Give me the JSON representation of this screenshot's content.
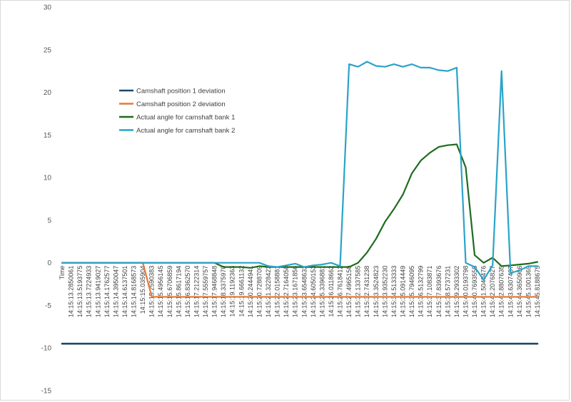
{
  "chart_data": {
    "type": "line",
    "title": "",
    "xlabel": "",
    "ylabel": "",
    "ylim": [
      -15,
      30
    ],
    "y_ticks": [
      -15,
      -10,
      -5,
      0,
      5,
      10,
      15,
      20,
      25,
      30
    ],
    "grid": "none",
    "legend_position": "left, upper middle",
    "categories": [
      "Time",
      "14:15:13.2850061",
      "14:15:13.5193775",
      "14:15:13.7224933",
      "14:15:13.9419027",
      "14:15:14.1762577",
      "14:15:14.3950047",
      "14:15:14.6137501",
      "14:15:14.8168573",
      "14:15:15.035904",
      "14:15:15.2590383",
      "14:15:15.4956145",
      "14:15:15.6706859",
      "14:15:15.8617194",
      "14:15:16.8362570",
      "14:15:17.2122314",
      "14:15:17.5559757",
      "14:15:17.9468848",
      "14:15:18.3375970",
      "14:15:19.1192363",
      "14:15:19.6661132",
      "14:15:20.2444941",
      "14:15:20.7288709",
      "14:15:21.3228423",
      "14:15:22.0158881",
      "14:15:22.7164050",
      "14:15:23.1671856",
      "14:15:23.6548632",
      "14:15:24.6050153",
      "14:15:25.3396881",
      "14:15:26.0118662",
      "14:15:26.7618412",
      "14:15:27.4965150",
      "14:15:32.1337585",
      "14:15:32.7431238",
      "14:15:33.3524823",
      "14:15:33.9352230",
      "14:15:34.5133333",
      "14:15:35.0914449",
      "14:15:35.7946095",
      "14:15:36.5132799",
      "14:15:37.1083871",
      "14:15:37.8393676",
      "14:15:38.5737231",
      "14:15:39.2933302",
      "14:15:40.0193798",
      "14:15:40.7693555",
      "14:15:41.5040476",
      "14:15:42.2076827",
      "14:15:42.8807635",
      "14:15:43.6307487",
      "14:15:44.3650906",
      "14:15:45.1001369",
      "14:15:45.8188675"
    ],
    "series": [
      {
        "name": "Camshaft position 1 deviation",
        "color": "#1a4a6b",
        "values": [
          -9.5,
          -9.5,
          -9.5,
          -9.5,
          -9.5,
          -9.5,
          -9.5,
          -9.5,
          -9.5,
          -9.5,
          -9.5,
          -9.5,
          -9.5,
          -9.5,
          -9.5,
          -9.5,
          -9.5,
          -9.5,
          -9.5,
          -9.5,
          -9.5,
          -9.5,
          -9.5,
          -9.5,
          -9.5,
          -9.5,
          -9.5,
          -9.5,
          -9.5,
          -9.5,
          -9.5,
          -9.5,
          -9.5,
          -9.5,
          -9.5,
          -9.5,
          -9.5,
          -9.5,
          -9.5,
          -9.5,
          -9.5,
          -9.5,
          -9.5,
          -9.5,
          -9.5,
          -9.5,
          -9.5,
          -9.5,
          -9.5,
          -9.5,
          -9.5,
          -9.5,
          -9.5,
          -9.5
        ]
      },
      {
        "name": "Camshaft position 2 deviation",
        "color": "#e07a3a",
        "values": [
          0,
          0,
          0,
          0,
          0,
          0,
          0,
          0,
          0,
          0,
          -4,
          -4,
          -4,
          -4,
          -4,
          -4,
          -4,
          -4,
          -4,
          -4,
          -4,
          -4,
          -4,
          -4,
          -4,
          -4,
          -4,
          -4,
          -4,
          -4,
          -4,
          -4,
          -4,
          -4,
          -4,
          -4,
          -4,
          -4,
          -4,
          -4,
          -4,
          -4,
          -4,
          -4,
          -4,
          -4,
          -4,
          -4,
          -4,
          -4,
          -4,
          -4,
          -4,
          -4
        ]
      },
      {
        "name": "Actual angle for camshaft bank 1",
        "color": "#1f6b1f",
        "values": [
          0,
          0,
          0,
          0,
          0,
          0,
          0,
          0,
          0,
          0,
          0,
          0,
          0,
          0,
          0,
          0,
          0,
          0,
          -0.5,
          -0.5,
          -0.5,
          -0.6,
          -0.4,
          -0.5,
          -0.5,
          -0.5,
          -0.5,
          -0.5,
          -0.5,
          -0.5,
          -0.5,
          -0.5,
          -0.5,
          0,
          1.2,
          2.8,
          4.8,
          6.3,
          8,
          10.5,
          12,
          12.9,
          13.6,
          13.8,
          13.9,
          11.2,
          0.9,
          0,
          0.6,
          -0.4,
          -0.3,
          -0.2,
          -0.1,
          0.1
        ]
      },
      {
        "name": "Actual angle for camshaft bank 2",
        "color": "#2aa3c9",
        "values": [
          0,
          0,
          0,
          0,
          0,
          0,
          0,
          0,
          0,
          0,
          0,
          0,
          0,
          0,
          0,
          0,
          0,
          0,
          0,
          0,
          0,
          0,
          0,
          -0.4,
          -0.5,
          -0.3,
          -0.1,
          -0.5,
          -0.3,
          -0.2,
          0,
          -0.4,
          23.3,
          23,
          23.6,
          23.1,
          23,
          23.3,
          23,
          23.3,
          22.9,
          22.9,
          22.6,
          22.5,
          22.9,
          0,
          -0.5,
          -2,
          -0.3,
          22.5,
          -1.2,
          -0.9,
          -0.4,
          -0.4
        ]
      }
    ]
  }
}
